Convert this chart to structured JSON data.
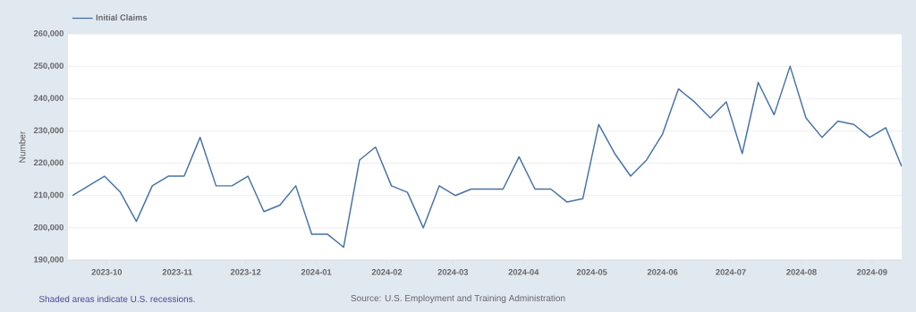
{
  "chart_data": {
    "type": "line",
    "ylabel": "Number",
    "legend": "top left",
    "grid": "y",
    "marker": "none",
    "line_style": "solid",
    "annotations": [
      "Shaded areas indicate U.S. recessions.",
      "Source: U.S. Employment and Training Administration"
    ],
    "x": [
      "2023-09-16",
      "2023-09-23",
      "2023-09-30",
      "2023-10-07",
      "2023-10-14",
      "2023-10-21",
      "2023-10-28",
      "2023-11-04",
      "2023-11-11",
      "2023-11-18",
      "2023-11-25",
      "2023-12-02",
      "2023-12-09",
      "2023-12-16",
      "2023-12-23",
      "2023-12-30",
      "2024-01-06",
      "2024-01-13",
      "2024-01-20",
      "2024-01-27",
      "2024-02-03",
      "2024-02-10",
      "2024-02-17",
      "2024-02-24",
      "2024-03-02",
      "2024-03-09",
      "2024-03-16",
      "2024-03-23",
      "2024-03-30",
      "2024-04-06",
      "2024-04-13",
      "2024-04-20",
      "2024-04-27",
      "2024-05-04",
      "2024-05-11",
      "2024-05-18",
      "2024-05-25",
      "2024-06-01",
      "2024-06-08",
      "2024-06-15",
      "2024-06-22",
      "2024-06-29",
      "2024-07-06",
      "2024-07-13",
      "2024-07-20",
      "2024-07-27",
      "2024-08-03",
      "2024-08-10",
      "2024-08-17",
      "2024-08-24",
      "2024-08-31",
      "2024-09-07",
      "2024-09-14"
    ],
    "series": [
      {
        "name": "Initial Claims",
        "color": "#4572a7",
        "values": [
          210000,
          213000,
          216000,
          211000,
          202000,
          213000,
          216000,
          216000,
          228000,
          213000,
          213000,
          216000,
          205000,
          207000,
          213000,
          198000,
          198000,
          194000,
          221000,
          225000,
          213000,
          211000,
          200000,
          213000,
          210000,
          212000,
          212000,
          212000,
          222000,
          212000,
          212000,
          208000,
          209000,
          232000,
          223000,
          216000,
          221000,
          229000,
          243000,
          239000,
          234000,
          239000,
          223000,
          245000,
          235000,
          250000,
          234000,
          228000,
          233000,
          232000,
          228000,
          231000,
          219000
        ]
      }
    ],
    "xlim": [
      "2023-09-14",
      "2024-09-14"
    ],
    "xticks": [
      "2023-10",
      "2023-11",
      "2023-12",
      "2024-01",
      "2024-02",
      "2024-03",
      "2024-04",
      "2024-05",
      "2024-06",
      "2024-07",
      "2024-08",
      "2024-09"
    ],
    "ylim": [
      190000,
      260000
    ],
    "yticks": [
      {
        "value": 190000,
        "label": "190,000"
      },
      {
        "value": 200000,
        "label": "200,000"
      },
      {
        "value": 210000,
        "label": "210,000"
      },
      {
        "value": 220000,
        "label": "220,000"
      },
      {
        "value": 230000,
        "label": "230,000"
      },
      {
        "value": 240000,
        "label": "240,000"
      },
      {
        "value": 250000,
        "label": "250,000"
      },
      {
        "value": 260000,
        "label": "260,000"
      }
    ]
  }
}
